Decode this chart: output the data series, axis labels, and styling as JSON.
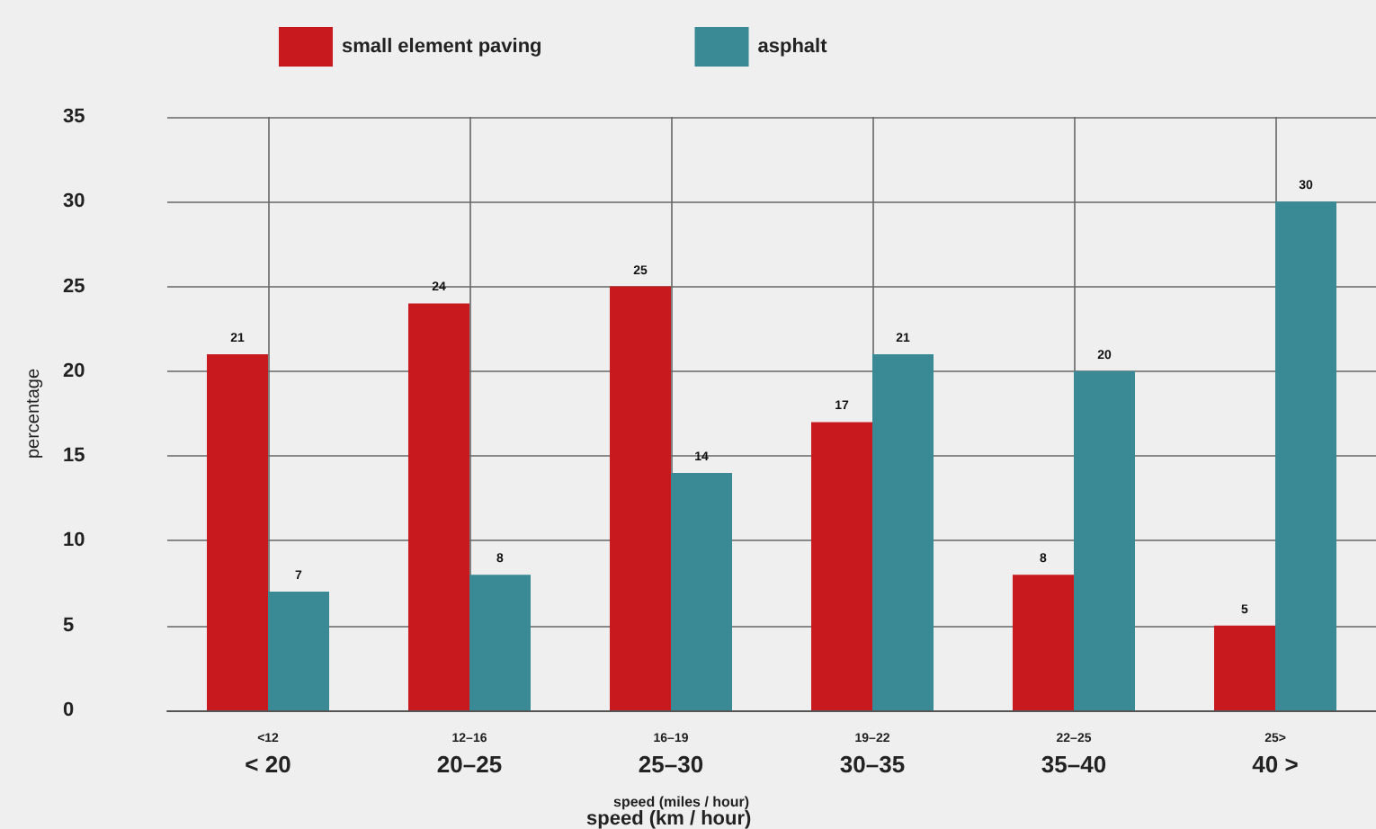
{
  "chart_data": {
    "type": "bar",
    "ylabel": "percentage",
    "xlabel": "speed (miles / hour)\nspeed (km / hour)",
    "categories": [
      "<12\n< 20",
      "12–16\n20–25",
      "16–19\n25–30",
      "19–22\n30–35",
      "22–25\n35–40",
      "25>\n40 >"
    ],
    "series": [
      {
        "name": "small element paving",
        "color": "#c8191e",
        "values": [
          21,
          24,
          25,
          17,
          8,
          5
        ]
      },
      {
        "name": "asphalt",
        "color": "#3a8a95",
        "values": [
          7,
          8,
          14,
          21,
          20,
          30
        ]
      }
    ],
    "data_labels": true,
    "ylim": [
      0,
      35
    ],
    "yticks": [
      0,
      5,
      10,
      15,
      20,
      25,
      30,
      35
    ],
    "grid": true,
    "legend": "top"
  }
}
